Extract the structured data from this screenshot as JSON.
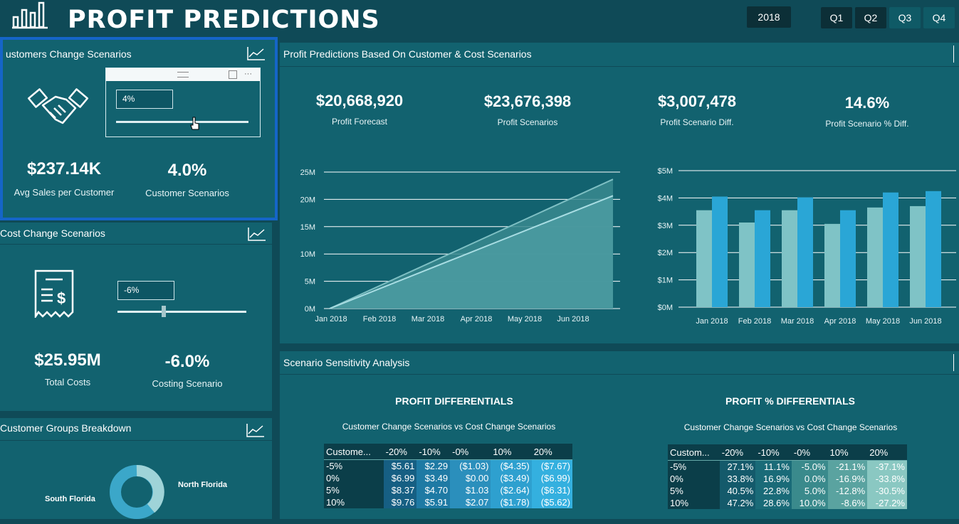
{
  "header": {
    "title": "PROFIT PREDICTIONS",
    "year": "2018",
    "quarters": [
      "Q1",
      "Q2",
      "Q3",
      "Q4"
    ]
  },
  "customers_panel": {
    "title": "ustomers Change Scenarios",
    "slider_value": "4%",
    "kpi1_value": "$237.14K",
    "kpi1_label": "Avg Sales per Customer",
    "kpi2_value": "4.0%",
    "kpi2_label": "Customer Scenarios"
  },
  "cost_panel": {
    "title": "Cost Change Scenarios",
    "slider_value": "-6%",
    "kpi1_value": "$25.95M",
    "kpi1_label": "Total Costs",
    "kpi2_value": "-6.0%",
    "kpi2_label": "Costing Scenario"
  },
  "groups_panel": {
    "title": "Customer Groups Breakdown",
    "labels": [
      "South Florida",
      "North Florida"
    ]
  },
  "predictions_panel": {
    "title": "Profit Predictions Based On Customer & Cost Scenarios",
    "kpis": [
      {
        "value": "$20,668,920",
        "label": "Profit Forecast"
      },
      {
        "value": "$23,676,398",
        "label": "Profit Scenarios"
      },
      {
        "value": "$3,007,478",
        "label": "Profit Scenario Diff."
      },
      {
        "value": "14.6%",
        "label": "Profit Scenario % Diff."
      }
    ]
  },
  "sensitivity_panel": {
    "title": "Scenario Sensitivity Analysis",
    "left_heading": "PROFIT DIFFERENTIALS",
    "left_sub": "Customer Change Scenarios vs Cost Change Scenarios",
    "right_heading": "PROFIT % DIFFERENTIALS",
    "right_sub": "Customer Change Scenarios vs Cost Change Scenarios",
    "left_table": {
      "columns": [
        "Custome...",
        "-20%",
        "-10%",
        "-0%",
        "10%",
        "20%"
      ],
      "rows": [
        [
          "-5%",
          "$5.61",
          "$2.29",
          "($1.03)",
          "($4.35)",
          "($7.67)"
        ],
        [
          "0%",
          "$6.99",
          "$3.49",
          "$0.00",
          "($3.49)",
          "($6.99)"
        ],
        [
          "5%",
          "$8.37",
          "$4.70",
          "$1.03",
          "($2.64)",
          "($6.31)"
        ],
        [
          "10%",
          "$9.76",
          "$5.91",
          "$2.07",
          "($1.78)",
          "($5.62)"
        ]
      ]
    },
    "right_table": {
      "columns": [
        "Custom...",
        "-20%",
        "-10%",
        "-0%",
        "10%",
        "20%"
      ],
      "rows": [
        [
          "-5%",
          "27.1%",
          "11.1%",
          "-5.0%",
          "-21.1%",
          "-37.1%"
        ],
        [
          "0%",
          "33.8%",
          "16.9%",
          "0.0%",
          "-16.9%",
          "-33.8%"
        ],
        [
          "5%",
          "40.5%",
          "22.8%",
          "5.0%",
          "-12.8%",
          "-30.5%"
        ],
        [
          "10%",
          "47.2%",
          "28.6%",
          "10.0%",
          "-8.6%",
          "-27.2%"
        ]
      ]
    }
  },
  "colors": {
    "background": "#0f4a57",
    "panel": "#12626f",
    "highlight_border": "#1565c8",
    "bar_light": "#7fc3c6",
    "bar_dark": "#2aa6d6"
  },
  "chart_data": [
    {
      "type": "area",
      "x": [
        "Jan 2018",
        "Feb 2018",
        "Mar 2018",
        "Apr 2018",
        "May 2018",
        "Jun 2018"
      ],
      "ytick_labels": [
        "0M",
        "5M",
        "10M",
        "15M",
        "20M",
        "25M"
      ],
      "ylim": [
        0,
        25000000
      ],
      "series": [
        {
          "values_start": 0,
          "values_end": 23676398
        },
        {
          "values_start": 0,
          "values_end": 20668920
        }
      ]
    },
    {
      "type": "bar",
      "categories": [
        "Jan 2018",
        "Feb 2018",
        "Mar 2018",
        "Apr 2018",
        "May 2018",
        "Jun 2018"
      ],
      "ytick_labels": [
        "$0M",
        "$1M",
        "$2M",
        "$3M",
        "$4M",
        "$5M"
      ],
      "ylim": [
        0,
        5000000
      ],
      "series": [
        {
          "values": [
            3550000,
            3100000,
            3550000,
            3050000,
            3650000,
            3700000
          ]
        },
        {
          "values": [
            4050000,
            3550000,
            4020000,
            3550000,
            4200000,
            4250000
          ]
        }
      ]
    }
  ]
}
